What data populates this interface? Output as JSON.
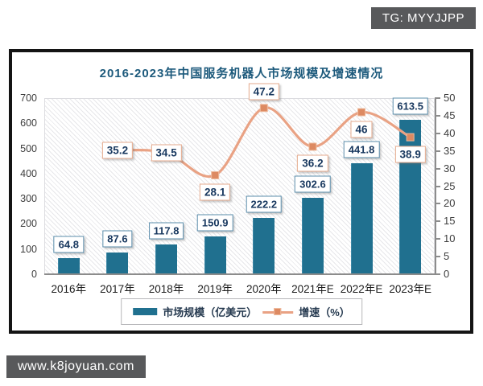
{
  "watermarks": {
    "top_right": "TG: MYYJJPP",
    "bottom_left": "www.k8joyuan.com"
  },
  "chart_data": {
    "type": "bar",
    "subtype": "bar-line-combo",
    "title": "2016-2023年中国服务机器人市场规模及增速情况",
    "categories": [
      "2016年",
      "2017年",
      "2018年",
      "2019年",
      "2020年",
      "2021年E",
      "2022年E",
      "2023年E"
    ],
    "series": [
      {
        "name": "市场规模（亿美元）",
        "type": "bar",
        "axis": "left",
        "color": "#20708f",
        "values": [
          64.8,
          87.6,
          117.8,
          150.9,
          222.2,
          302.6,
          441.8,
          613.5
        ],
        "labels": [
          "64.8",
          "87.6",
          "117.8",
          "150.9",
          "222.2",
          "302.6",
          "441.8",
          "613.5"
        ]
      },
      {
        "name": "增速（%）",
        "type": "line",
        "axis": "right",
        "color": "#e9a284",
        "marker_color": "#dd8a62",
        "values": [
          null,
          35.2,
          34.5,
          28.1,
          47.2,
          36.2,
          46,
          38.9
        ],
        "labels": [
          null,
          "35.2",
          "34.5",
          "28.1",
          "47.2",
          "36.2",
          "46",
          "38.9"
        ],
        "label_positions": [
          null,
          "center",
          "center",
          "below",
          "above",
          "below",
          "below",
          "below"
        ]
      }
    ],
    "axes": {
      "left": {
        "min": 0,
        "max": 700,
        "step": 100,
        "ticks": [
          "0",
          "100",
          "200",
          "300",
          "400",
          "500",
          "600",
          "700"
        ]
      },
      "right": {
        "min": 0,
        "max": 50,
        "step": 5,
        "ticks": [
          "0",
          "5",
          "10",
          "15",
          "20",
          "25",
          "30",
          "35",
          "40",
          "45",
          "50"
        ]
      }
    },
    "legend": {
      "position": "bottom"
    },
    "background": "diagonal-hatch",
    "grid": "off"
  }
}
